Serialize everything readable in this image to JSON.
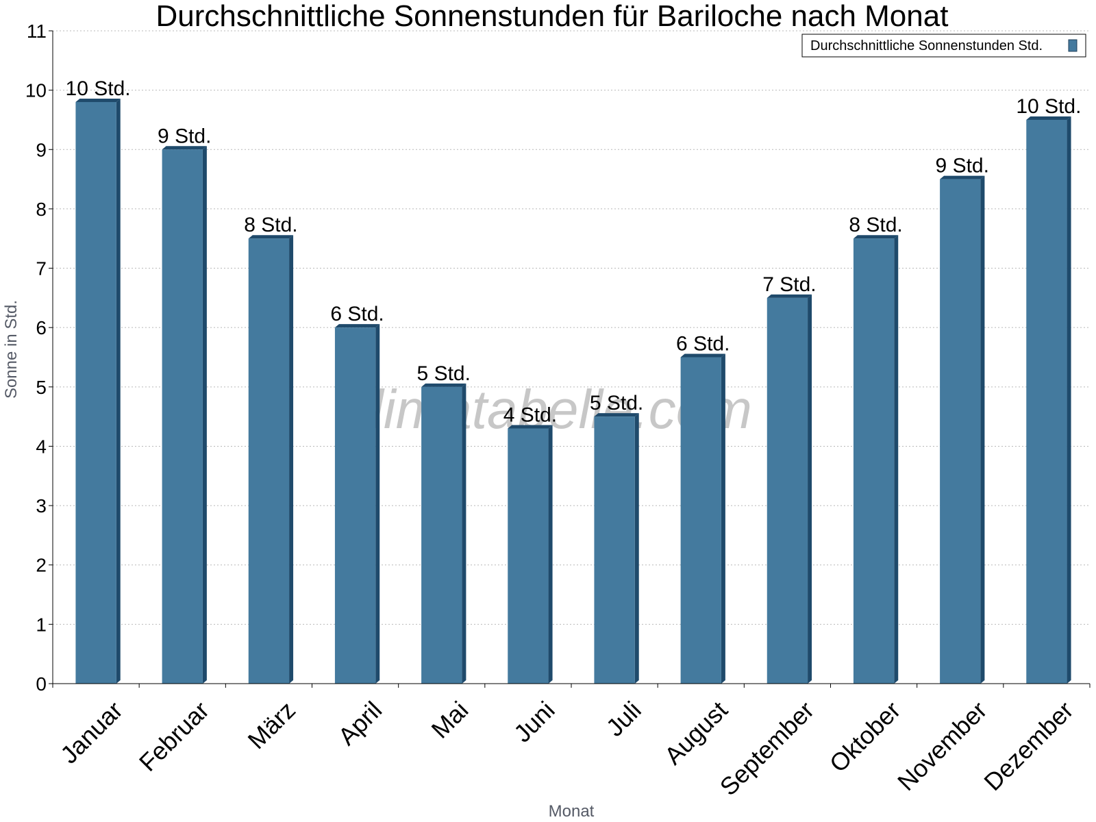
{
  "chart_data": {
    "type": "bar",
    "title": "Durchschnittliche Sonnenstunden für Bariloche nach Monat",
    "xlabel": "Monat",
    "ylabel": "Sonne in Std.",
    "ylim": [
      0,
      11
    ],
    "yticks": [
      0,
      1,
      2,
      3,
      4,
      5,
      6,
      7,
      8,
      9,
      10,
      11
    ],
    "grid": true,
    "legend_position": "top-right",
    "categories": [
      "Januar",
      "Februar",
      "März",
      "April",
      "Mai",
      "Juni",
      "Juli",
      "August",
      "September",
      "Oktober",
      "November",
      "Dezember"
    ],
    "series": [
      {
        "name": "Durchschnittliche Sonnenstunden Std.",
        "values": [
          9.8,
          9.0,
          7.5,
          6.0,
          5.0,
          4.3,
          4.5,
          5.5,
          6.5,
          7.5,
          8.5,
          9.5
        ],
        "labels": [
          "10 Std.",
          "9 Std.",
          "8 Std.",
          "6 Std.",
          "5 Std.",
          "4 Std.",
          "5 Std.",
          "6 Std.",
          "7 Std.",
          "8 Std.",
          "9 Std.",
          "10 Std."
        ],
        "color": "#447a9e",
        "side_color": "#1f4a6b"
      }
    ]
  },
  "watermark": "klimatabelle.com"
}
